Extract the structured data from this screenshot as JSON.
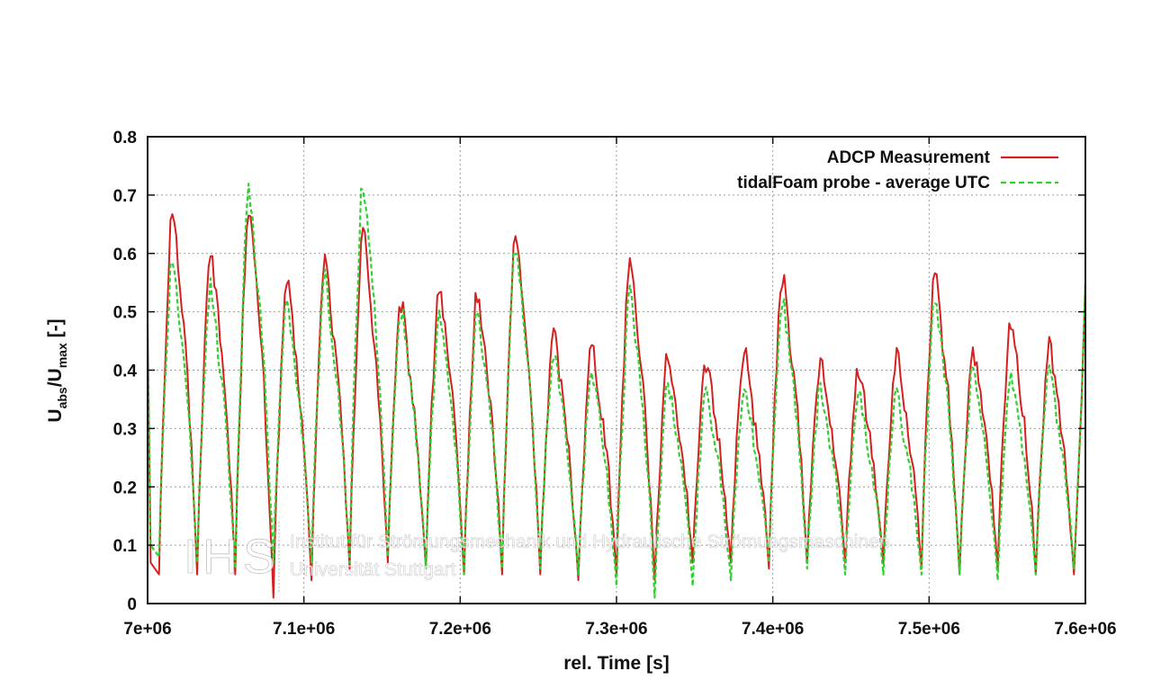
{
  "chart_data": {
    "type": "line",
    "title": "",
    "xlabel": "rel. Time [s]",
    "ylabel": {
      "main": "U",
      "sub1": "abs",
      "mid": "/U",
      "sub2": "max",
      "tail": " [-]"
    },
    "xlim": [
      7000000,
      7600000
    ],
    "ylim": [
      0,
      0.8
    ],
    "x_ticks": [
      7000000,
      7100000,
      7200000,
      7300000,
      7400000,
      7500000,
      7600000
    ],
    "x_tick_labels": [
      "7e+06",
      "7.1e+06",
      "7.2e+06",
      "7.3e+06",
      "7.4e+06",
      "7.5e+06",
      "7.6e+06"
    ],
    "y_ticks": [
      0,
      0.1,
      0.2,
      0.3,
      0.4,
      0.5,
      0.6,
      0.7,
      0.8
    ],
    "y_tick_labels": [
      "0",
      "0.1",
      "0.2",
      "0.3",
      "0.4",
      "0.5",
      "0.6",
      "0.7",
      "0.8"
    ],
    "grid": true,
    "legend_position": "top-right",
    "series": [
      {
        "name": "ADCP Measurement",
        "color": "#d42020",
        "dash": "solid",
        "peaks": [
          0.69,
          0.62,
          0.69,
          0.56,
          0.6,
          0.65,
          0.52,
          0.55,
          0.54,
          0.64,
          0.47,
          0.45,
          0.6,
          0.43,
          0.42,
          0.44,
          0.57,
          0.42,
          0.41,
          0.43,
          0.57,
          0.44,
          0.49,
          0.45
        ],
        "troughs": [
          0.05,
          0.05,
          0.05,
          0.01,
          0.04,
          0.06,
          0.07,
          0.06,
          0.05,
          0.05,
          0.05,
          0.04,
          0.05,
          0.04,
          0.07,
          0.07,
          0.06,
          0.07,
          0.07,
          0.07,
          0.06,
          0.05,
          0.06,
          0.05,
          0.05
        ]
      },
      {
        "name": "tidalFoam probe - average UTC",
        "color": "#2fd02f",
        "dash": "dashed",
        "peaks": [
          0.6,
          0.55,
          0.72,
          0.53,
          0.57,
          0.73,
          0.51,
          0.51,
          0.51,
          0.62,
          0.44,
          0.4,
          0.54,
          0.38,
          0.37,
          0.38,
          0.53,
          0.37,
          0.37,
          0.36,
          0.53,
          0.41,
          0.39,
          0.4
        ],
        "troughs": [
          0.08,
          0.07,
          0.06,
          0.07,
          0.07,
          0.07,
          0.08,
          0.06,
          0.05,
          0.06,
          0.06,
          0.05,
          0.03,
          0.01,
          0.03,
          0.04,
          0.07,
          0.06,
          0.05,
          0.05,
          0.05,
          0.05,
          0.04,
          0.05,
          0.06
        ]
      }
    ]
  },
  "watermark": {
    "logo": "IHS",
    "line1": "Institut für Strömungsmechanik und Hydraulische Strömungsmaschinen",
    "line2": "Universität Stuttgart"
  }
}
